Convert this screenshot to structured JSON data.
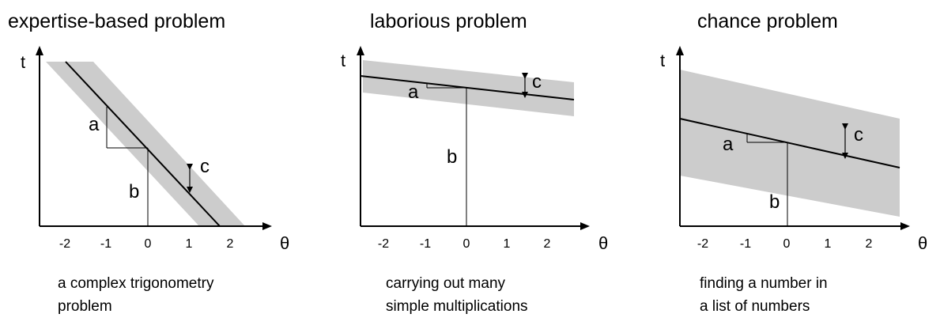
{
  "panels": [
    {
      "title": "expertise-based problem",
      "caption_line1": "a complex trigonometry",
      "caption_line2": "problem",
      "y_axis_label": "t",
      "x_axis_label": "θ",
      "x_ticks": [
        "-2",
        "-1",
        "0",
        "1",
        "2"
      ],
      "labels": {
        "a": "a",
        "b": "b",
        "c": "c"
      }
    },
    {
      "title": "laborious problem",
      "caption_line1": "carrying out many",
      "caption_line2": "simple multiplications",
      "y_axis_label": "t",
      "x_axis_label": "θ",
      "x_ticks": [
        "-2",
        "-1",
        "0",
        "1",
        "2"
      ],
      "labels": {
        "a": "a",
        "b": "b",
        "c": "c"
      }
    },
    {
      "title": "chance problem",
      "caption_line1": "finding a number in",
      "caption_line2": "a list of numbers",
      "y_axis_label": "t",
      "x_axis_label": "θ",
      "x_ticks": [
        "-2",
        "-1",
        "0",
        "1",
        "2"
      ],
      "labels": {
        "a": "a",
        "b": "b",
        "c": "c"
      }
    }
  ],
  "colors": {
    "band": "#cccccc",
    "line": "#000000"
  }
}
